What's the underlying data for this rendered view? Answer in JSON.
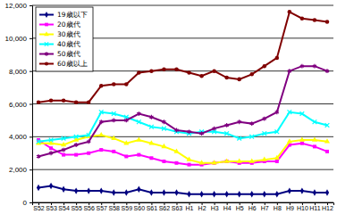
{
  "chart_data": {
    "type": "line",
    "categories": [
      "S52",
      "S53",
      "S54",
      "S55",
      "S56",
      "S57",
      "S58",
      "S59",
      "S60",
      "S61",
      "S62",
      "S63",
      "H1",
      "H2",
      "H3",
      "H4",
      "H5",
      "H6",
      "H7",
      "H8",
      "H9",
      "H10",
      "H11",
      "H12"
    ],
    "series": [
      {
        "name": "19歳以下",
        "color": "#000080",
        "marker": "diamond",
        "values": [
          900,
          1000,
          800,
          700,
          700,
          700,
          600,
          600,
          800,
          600,
          600,
          600,
          500,
          500,
          500,
          500,
          500,
          500,
          500,
          500,
          700,
          700,
          600,
          600
        ]
      },
      {
        "name": "20歳代",
        "color": "#ff00ff",
        "marker": "square",
        "values": [
          3800,
          3300,
          2900,
          2900,
          3000,
          3200,
          3100,
          2800,
          2900,
          2700,
          2500,
          2400,
          2300,
          2300,
          2400,
          2500,
          2400,
          2400,
          2500,
          2500,
          3500,
          3600,
          3400,
          3100
        ]
      },
      {
        "name": "30歳代",
        "color": "#ffff00",
        "marker": "triangle",
        "values": [
          3600,
          3600,
          3500,
          3800,
          4000,
          4100,
          3900,
          3600,
          3800,
          3600,
          3400,
          3100,
          2600,
          2400,
          2400,
          2500,
          2500,
          2500,
          2600,
          2700,
          3700,
          3800,
          3800,
          3700
        ]
      },
      {
        "name": "40歳代",
        "color": "#00ffff",
        "marker": "x",
        "values": [
          3700,
          3800,
          3900,
          4000,
          4100,
          5500,
          5400,
          5200,
          4900,
          4600,
          4500,
          4300,
          4200,
          4300,
          4300,
          4200,
          3900,
          4000,
          4200,
          4300,
          5500,
          5400,
          4900,
          4700
        ]
      },
      {
        "name": "50歳代",
        "color": "#800080",
        "marker": "asterisk",
        "values": [
          2800,
          3000,
          3200,
          3500,
          3700,
          4900,
          5000,
          5000,
          5400,
          5200,
          4900,
          4400,
          4300,
          4200,
          4500,
          4700,
          4900,
          4800,
          5100,
          5500,
          8000,
          8300,
          8300,
          8000
        ]
      },
      {
        "name": "60歳以上",
        "color": "#800000",
        "marker": "circle",
        "values": [
          6100,
          6200,
          6200,
          6100,
          6100,
          7100,
          7200,
          7200,
          7900,
          8000,
          8100,
          8100,
          7900,
          7700,
          8000,
          7600,
          7500,
          7800,
          8300,
          8800,
          11600,
          11200,
          11100,
          11000
        ]
      }
    ],
    "ylim": [
      0,
      12000
    ],
    "yticks": [
      0,
      {
        "value": 2000,
        "label": "2,000"
      },
      {
        "value": 4000,
        "label": "4,000"
      },
      {
        "value": 6000,
        "label": "6,000"
      },
      {
        "value": 8000,
        "label": "8,000"
      },
      {
        "value": 10000,
        "label": "10,000"
      },
      {
        "value": 12000,
        "label": "12,000"
      }
    ],
    "grid": true,
    "legend": "top-left"
  }
}
